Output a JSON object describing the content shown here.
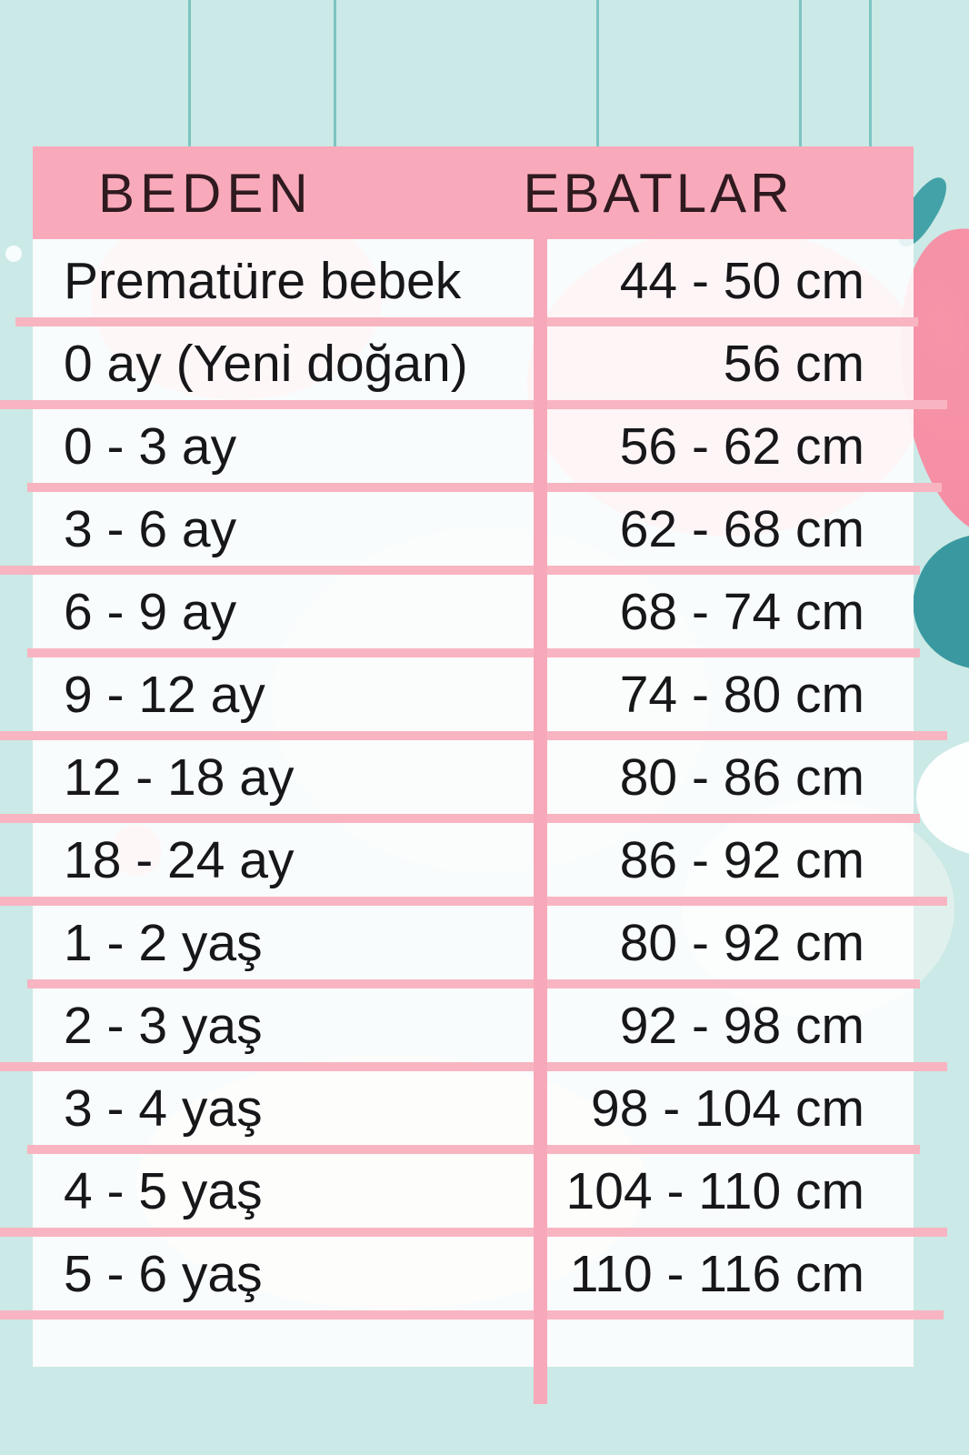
{
  "header": {
    "size_label": "BEDEN",
    "dimensions_label": "EBATLAR"
  },
  "table": {
    "rows": [
      {
        "size": "Prematüre bebek",
        "range": "44 - 50 cm"
      },
      {
        "size": "0 ay (Yeni doğan)",
        "range": "56 cm"
      },
      {
        "size": "0 - 3 ay",
        "range": "56 - 62 cm"
      },
      {
        "size": "3 - 6 ay",
        "range": "62 - 68 cm"
      },
      {
        "size": "6 - 9 ay",
        "range": "68 - 74 cm"
      },
      {
        "size": "9 - 12 ay",
        "range": "74 - 80 cm"
      },
      {
        "size": "12 - 18 ay",
        "range": "80 - 86 cm"
      },
      {
        "size": "18 - 24 ay",
        "range": "86 - 92 cm"
      },
      {
        "size": "1 - 2 yaş",
        "range": "80 - 92 cm"
      },
      {
        "size": "2 - 3 yaş",
        "range": "92 - 98 cm"
      },
      {
        "size": "3 - 4 yaş",
        "range": "98 - 104 cm"
      },
      {
        "size": "4 - 5 yaş",
        "range": "104 - 110 cm"
      },
      {
        "size": "5 - 6 yaş",
        "range": "110 - 116 cm"
      },
      {
        "size": "",
        "range": ""
      }
    ]
  },
  "chart_data": {
    "type": "table",
    "title": "",
    "columns": [
      "BEDEN",
      "EBATLAR"
    ],
    "rows": [
      [
        "Prematüre bebek",
        "44 - 50 cm"
      ],
      [
        "0 ay (Yeni doğan)",
        "56 cm"
      ],
      [
        "0 - 3 ay",
        "56 - 62 cm"
      ],
      [
        "3 - 6 ay",
        "62 - 68 cm"
      ],
      [
        "6 - 9 ay",
        "68 - 74 cm"
      ],
      [
        "9 - 12 ay",
        "74 - 80 cm"
      ],
      [
        "12 - 18 ay",
        "80 - 86 cm"
      ],
      [
        "18 - 24 ay",
        "86 - 92 cm"
      ],
      [
        "1 - 2 yaş",
        "80 - 92 cm"
      ],
      [
        "2 - 3 yaş",
        "92 - 98 cm"
      ],
      [
        "3 - 4 yaş",
        "98 - 104 cm"
      ],
      [
        "4 - 5 yaş",
        "104 - 110 cm"
      ],
      [
        "5 - 6 yaş",
        "110 - 116 cm"
      ]
    ]
  },
  "colors": {
    "background": "#cbe9e6",
    "string_teal": "#7cc4c1",
    "header_bg": "#f9aaba",
    "header_text": "#2f1a20",
    "line_pink": "#f8b5c1",
    "divider_pink": "#f7a9ba",
    "text": "#17171a",
    "decor_teal": "#43a2a8",
    "decor_teal2": "#3a99a0",
    "decor_pink": "#f794a9"
  },
  "decorations": [
    "hanging-string",
    "leaf-decoration",
    "balloon-decoration",
    "wave-decoration",
    "cloud-decoration",
    "white-dot"
  ]
}
